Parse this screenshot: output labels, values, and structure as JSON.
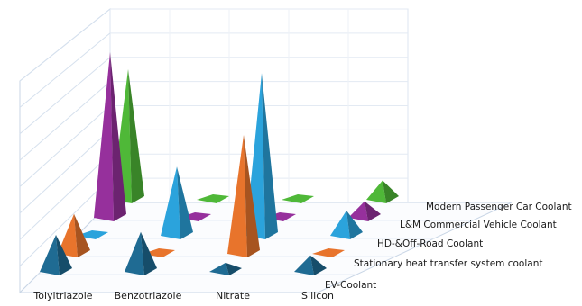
{
  "chart_data": {
    "type": "bar",
    "subtype": "3d-cone",
    "categories": [
      "Tolyltriazole",
      "Benzotriazole",
      "Nitrate",
      "Silicon"
    ],
    "series": [
      {
        "name": "EV-Coolant",
        "color": "#1f6b93",
        "values": [
          1.2,
          1.3,
          0.25,
          0.5
        ]
      },
      {
        "name": "Stationary heat transfer system coolant",
        "color": "#e8742c",
        "values": [
          1.3,
          0.05,
          4.0,
          0.05
        ]
      },
      {
        "name": "HD-&Off-Road Coolant",
        "color": "#2ba3dc",
        "values": [
          0.05,
          2.3,
          5.5,
          0.8
        ]
      },
      {
        "name": "L&M Commercial Vehicle Coolant",
        "color": "#96309c",
        "values": [
          5.6,
          0.05,
          0.05,
          0.5
        ]
      },
      {
        "name": "Modern Passenger Car Coolant",
        "color": "#4fb838",
        "values": [
          4.4,
          0.05,
          0.05,
          0.6
        ]
      }
    ],
    "ylim": [
      0,
      8
    ],
    "grid": true,
    "legend": "right, along depth axis",
    "title": "",
    "xlabel": "",
    "ylabel": ""
  }
}
